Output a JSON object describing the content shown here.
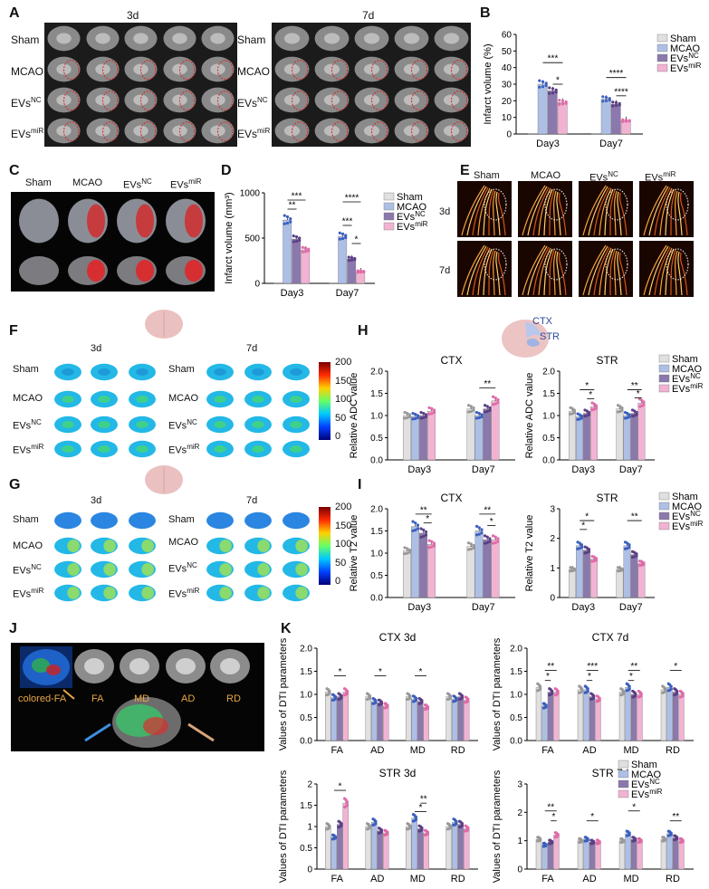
{
  "labels": {
    "A": "A",
    "B": "B",
    "C": "C",
    "D": "D",
    "E": "E",
    "F": "F",
    "G": "G",
    "H": "H",
    "I": "I",
    "J": "J",
    "K": "K"
  },
  "groups": [
    "Sham",
    "MCAO",
    "EVsNC",
    "EVsmiR"
  ],
  "time": {
    "d3": "3d",
    "d7": "7d"
  },
  "days": [
    "Day3",
    "Day7"
  ],
  "colorbar": {
    "ticks": [
      "200",
      "150",
      "100",
      "50",
      "0"
    ]
  },
  "regions": {
    "ctx": "CTX",
    "str": "STR"
  },
  "J": {
    "colored": "colored-FA",
    "fa": "FA",
    "md": "MD",
    "ad": "AD",
    "rd": "RD"
  },
  "colors": {
    "Sham": "#e0e0e0",
    "MCAO": "#aebfe6",
    "EVsNC": "#8b78ad",
    "EVsmiR": "#f2b3d3"
  },
  "chart_data": [
    {
      "panel": "B",
      "type": "bar",
      "ylabel": "Infarct volume (%)",
      "ylim": [
        0,
        60
      ],
      "yticks": [
        0,
        10,
        20,
        30,
        40,
        50,
        60
      ],
      "categories": [
        "Day3",
        "Day7"
      ],
      "series": [
        {
          "name": "Sham",
          "values": [
            0,
            0
          ]
        },
        {
          "name": "MCAO",
          "values": [
            30,
            21
          ]
        },
        {
          "name": "EVsNC",
          "values": [
            26,
            18
          ]
        },
        {
          "name": "EVsmiR",
          "values": [
            19,
            8
          ]
        }
      ],
      "sig": [
        {
          "label": "***",
          "day": 0,
          "from": 1,
          "to": 3,
          "y": 43
        },
        {
          "label": "*",
          "day": 0,
          "from": 2,
          "to": 3,
          "y": 30
        },
        {
          "label": "****",
          "day": 1,
          "from": 1,
          "to": 3,
          "y": 34
        },
        {
          "label": "****",
          "day": 1,
          "from": 2,
          "to": 3,
          "y": 23
        }
      ]
    },
    {
      "panel": "D",
      "type": "bar",
      "ylabel": "Infarct volume (mm³)",
      "ylim": [
        0,
        1000
      ],
      "yticks": [
        0,
        500,
        1000
      ],
      "categories": [
        "Day3",
        "Day7"
      ],
      "series": [
        {
          "name": "Sham",
          "values": [
            0,
            0
          ]
        },
        {
          "name": "MCAO",
          "values": [
            700,
            520
          ]
        },
        {
          "name": "EVsNC",
          "values": [
            490,
            270
          ]
        },
        {
          "name": "EVsmiR",
          "values": [
            370,
            130
          ]
        }
      ],
      "sig": [
        {
          "label": "***",
          "day": 0,
          "from": 1,
          "to": 3,
          "y": 920
        },
        {
          "label": "**",
          "day": 0,
          "from": 1,
          "to": 2,
          "y": 820
        },
        {
          "label": "****",
          "day": 1,
          "from": 1,
          "to": 3,
          "y": 900
        },
        {
          "label": "***",
          "day": 1,
          "from": 1,
          "to": 2,
          "y": 640
        },
        {
          "label": "*",
          "day": 1,
          "from": 2,
          "to": 3,
          "y": 440
        }
      ]
    },
    {
      "panel": "H-CTX",
      "type": "bar",
      "title": "CTX",
      "ylabel": "Relative ADC value",
      "ylim": [
        0,
        2.0
      ],
      "yticks": [
        0.0,
        0.5,
        1.0,
        1.5,
        2.0
      ],
      "categories": [
        "Day3",
        "Day7"
      ],
      "series": [
        {
          "name": "Sham",
          "values": [
            1.0,
            1.15
          ]
        },
        {
          "name": "MCAO",
          "values": [
            0.98,
            1.0
          ]
        },
        {
          "name": "EVsNC",
          "values": [
            1.0,
            1.15
          ]
        },
        {
          "name": "EVsmiR",
          "values": [
            1.1,
            1.33
          ]
        }
      ],
      "sig": [
        {
          "label": "**",
          "day": 1,
          "from": 1,
          "to": 3,
          "y": 1.62
        }
      ]
    },
    {
      "panel": "H-STR",
      "type": "bar",
      "title": "STR",
      "ylabel": "Relative ADC value",
      "ylim": [
        0,
        2.0
      ],
      "yticks": [
        0.0,
        0.5,
        1.0,
        1.5,
        2.0
      ],
      "categories": [
        "Day3",
        "Day7"
      ],
      "series": [
        {
          "name": "Sham",
          "values": [
            1.1,
            1.15
          ]
        },
        {
          "name": "MCAO",
          "values": [
            0.97,
            1.0
          ]
        },
        {
          "name": "EVsNC",
          "values": [
            1.05,
            1.05
          ]
        },
        {
          "name": "EVsmiR",
          "values": [
            1.2,
            1.28
          ]
        }
      ],
      "sig": [
        {
          "label": "*",
          "day": 0,
          "from": 1,
          "to": 3,
          "y": 1.58
        },
        {
          "label": "*",
          "day": 0,
          "from": 2,
          "to": 3,
          "y": 1.38
        },
        {
          "label": "**",
          "day": 1,
          "from": 1,
          "to": 3,
          "y": 1.58
        },
        {
          "label": "*",
          "day": 1,
          "from": 2,
          "to": 3,
          "y": 1.4
        }
      ]
    },
    {
      "panel": "I-CTX",
      "type": "bar",
      "title": "CTX",
      "ylabel": "Relative T2 value",
      "ylim": [
        0,
        2.0
      ],
      "yticks": [
        0.0,
        0.5,
        1.0,
        1.5,
        2.0
      ],
      "categories": [
        "Day3",
        "Day7"
      ],
      "series": [
        {
          "name": "Sham",
          "values": [
            1.05,
            1.15
          ]
        },
        {
          "name": "MCAO",
          "values": [
            1.6,
            1.5
          ]
        },
        {
          "name": "EVsNC",
          "values": [
            1.45,
            1.3
          ]
        },
        {
          "name": "EVsmiR",
          "values": [
            1.2,
            1.3
          ]
        }
      ],
      "sig": [
        {
          "label": "**",
          "day": 0,
          "from": 1,
          "to": 3,
          "y": 1.88
        },
        {
          "label": "*",
          "day": 0,
          "from": 2,
          "to": 3,
          "y": 1.68
        },
        {
          "label": "**",
          "day": 1,
          "from": 1,
          "to": 3,
          "y": 1.88
        },
        {
          "label": "*",
          "day": 1,
          "from": 2,
          "to": 3,
          "y": 1.62
        }
      ]
    },
    {
      "panel": "I-STR",
      "type": "bar",
      "title": "STR",
      "ylabel": "Relative T2 value",
      "ylim": [
        0,
        3
      ],
      "yticks": [
        0,
        1,
        2,
        3
      ],
      "categories": [
        "Day3",
        "Day7"
      ],
      "series": [
        {
          "name": "Sham",
          "values": [
            0.95,
            0.95
          ]
        },
        {
          "name": "MCAO",
          "values": [
            1.75,
            1.75
          ]
        },
        {
          "name": "EVsNC",
          "values": [
            1.6,
            1.45
          ]
        },
        {
          "name": "EVsmiR",
          "values": [
            1.3,
            1.15
          ]
        }
      ],
      "sig": [
        {
          "label": "*",
          "day": 0,
          "from": 1,
          "to": 3,
          "y": 2.6
        },
        {
          "label": "*",
          "day": 0,
          "from": 1,
          "to": 2,
          "y": 2.3
        },
        {
          "label": "**",
          "day": 1,
          "from": 1,
          "to": 3,
          "y": 2.6
        }
      ]
    },
    {
      "panel": "K-CTX3d",
      "type": "bar",
      "title": "CTX 3d",
      "ylabel": "Values of DTI parameters",
      "ylim": [
        0,
        2.0
      ],
      "yticks": [
        0.0,
        0.5,
        1.0,
        1.5,
        2.0
      ],
      "categories": [
        "FA",
        "AD",
        "MD",
        "RD"
      ],
      "series": [
        {
          "name": "Sham",
          "values": [
            1.05,
            0.95,
            0.95,
            0.95
          ]
        },
        {
          "name": "MCAO",
          "values": [
            0.93,
            0.85,
            0.9,
            0.9
          ]
        },
        {
          "name": "EVsNC",
          "values": [
            0.95,
            0.82,
            0.85,
            0.95
          ]
        },
        {
          "name": "EVsmiR",
          "values": [
            1.05,
            0.75,
            0.72,
            0.88
          ]
        }
      ],
      "sig": [
        {
          "label": "*",
          "day": 0,
          "from": 1,
          "to": 3,
          "y": 1.4
        },
        {
          "label": "*",
          "day": 1,
          "from": 1,
          "to": 3,
          "y": 1.4
        },
        {
          "label": "*",
          "day": 2,
          "from": 1,
          "to": 3,
          "y": 1.4
        }
      ]
    },
    {
      "panel": "K-CTX7d",
      "type": "bar",
      "title": "CTX 7d",
      "ylabel": "Values of DTI parameters",
      "ylim": [
        0,
        2.0
      ],
      "yticks": [
        0.0,
        0.5,
        1.0,
        1.5,
        2.0
      ],
      "categories": [
        "FA",
        "AD",
        "MD",
        "RD"
      ],
      "series": [
        {
          "name": "Sham",
          "values": [
            1.15,
            1.1,
            1.05,
            1.1
          ]
        },
        {
          "name": "MCAO",
          "values": [
            0.75,
            1.1,
            1.15,
            1.15
          ]
        },
        {
          "name": "EVsNC",
          "values": [
            1.05,
            0.95,
            1.0,
            1.05
          ]
        },
        {
          "name": "EVsmiR",
          "values": [
            1.05,
            0.9,
            1.0,
            1.0
          ]
        }
      ],
      "sig": [
        {
          "label": "**",
          "day": 0,
          "from": 1,
          "to": 3,
          "y": 1.52
        },
        {
          "label": "*",
          "day": 0,
          "from": 1,
          "to": 2,
          "y": 1.3
        },
        {
          "label": "***",
          "day": 1,
          "from": 1,
          "to": 3,
          "y": 1.52
        },
        {
          "label": "*",
          "day": 1,
          "from": 1,
          "to": 2,
          "y": 1.3
        },
        {
          "label": "**",
          "day": 2,
          "from": 1,
          "to": 3,
          "y": 1.52
        },
        {
          "label": "*",
          "day": 2,
          "from": 1,
          "to": 2,
          "y": 1.3
        },
        {
          "label": "*",
          "day": 3,
          "from": 1,
          "to": 3,
          "y": 1.52
        }
      ]
    },
    {
      "panel": "K-STR3d",
      "type": "bar",
      "title": "STR 3d",
      "ylabel": "Values of DTI parameters",
      "ylim": [
        0,
        2
      ],
      "yticks": [
        0,
        0.5,
        1,
        1.5,
        2
      ],
      "categories": [
        "FA",
        "AD",
        "MD",
        "RD"
      ],
      "series": [
        {
          "name": "Sham",
          "values": [
            1.0,
            1.0,
            1.0,
            1.0
          ]
        },
        {
          "name": "MCAO",
          "values": [
            0.75,
            1.1,
            1.2,
            1.1
          ]
        },
        {
          "name": "EVsNC",
          "values": [
            1.05,
            0.9,
            0.95,
            1.05
          ]
        },
        {
          "name": "EVsmiR",
          "values": [
            1.55,
            0.85,
            0.85,
            0.95
          ]
        }
      ],
      "sig": [
        {
          "label": "*",
          "day": 0,
          "from": 1,
          "to": 3,
          "y": 1.85
        },
        {
          "label": "**",
          "day": 2,
          "from": 2,
          "to": 3,
          "y": 1.55
        },
        {
          "label": "*",
          "day": 2,
          "from": 1,
          "to": 3,
          "y": 1.35
        }
      ]
    },
    {
      "panel": "K-STR7d",
      "type": "bar",
      "title": "STR 7d",
      "ylabel": "Values of DTI parameters",
      "ylim": [
        0,
        3
      ],
      "yticks": [
        0,
        1,
        2,
        3
      ],
      "categories": [
        "FA",
        "AD",
        "MD",
        "RD"
      ],
      "series": [
        {
          "name": "Sham",
          "values": [
            1.05,
            1.0,
            1.0,
            1.05
          ]
        },
        {
          "name": "MCAO",
          "values": [
            0.85,
            1.05,
            1.25,
            1.25
          ]
        },
        {
          "name": "EVsNC",
          "values": [
            0.95,
            0.95,
            1.05,
            1.1
          ]
        },
        {
          "name": "EVsmiR",
          "values": [
            1.2,
            0.95,
            1.0,
            1.0
          ]
        }
      ],
      "sig": [
        {
          "label": "**",
          "day": 0,
          "from": 1,
          "to": 3,
          "y": 2.05
        },
        {
          "label": "*",
          "day": 0,
          "from": 2,
          "to": 3,
          "y": 1.7
        },
        {
          "label": "*",
          "day": 1,
          "from": 1,
          "to": 3,
          "y": 1.7
        },
        {
          "label": "*",
          "day": 2,
          "from": 1,
          "to": 3,
          "y": 2.05
        },
        {
          "label": "**",
          "day": 3,
          "from": 1,
          "to": 3,
          "y": 1.7
        }
      ]
    }
  ]
}
